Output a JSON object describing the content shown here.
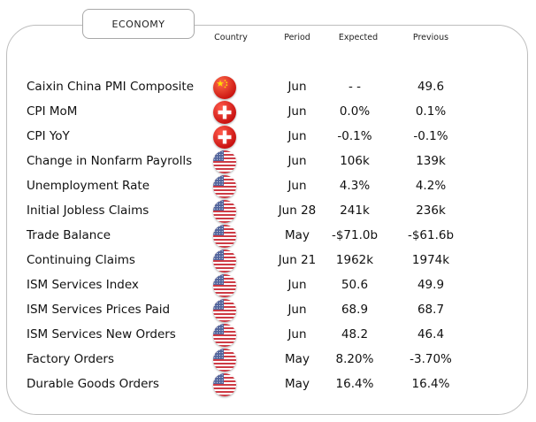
{
  "tab_label": "ECONOMY",
  "columns": {
    "country": "Country",
    "period": "Period",
    "expected": "Expected",
    "previous": "Previous"
  },
  "rows": [
    {
      "name": "Caixin China PMI Composite",
      "country_icon": "china-flag-icon",
      "period": "Jun",
      "expected": "- -",
      "previous": "49.6"
    },
    {
      "name": "CPI MoM",
      "country_icon": "switzerland-flag-icon",
      "period": "Jun",
      "expected": "0.0%",
      "previous": "0.1%"
    },
    {
      "name": "CPI YoY",
      "country_icon": "switzerland-flag-icon",
      "period": "Jun",
      "expected": "-0.1%",
      "previous": "-0.1%"
    },
    {
      "name": "Change in Nonfarm Payrolls",
      "country_icon": "usa-flag-icon",
      "period": "Jun",
      "expected": "106k",
      "previous": "139k"
    },
    {
      "name": "Unemployment Rate",
      "country_icon": "usa-flag-icon",
      "period": "Jun",
      "expected": "4.3%",
      "previous": "4.2%"
    },
    {
      "name": "Initial Jobless Claims",
      "country_icon": "usa-flag-icon",
      "period": "Jun 28",
      "expected": "241k",
      "previous": "236k"
    },
    {
      "name": "Trade Balance",
      "country_icon": "usa-flag-icon",
      "period": "May",
      "expected": "-$71.0b",
      "previous": "-$61.6b"
    },
    {
      "name": "Continuing Claims",
      "country_icon": "usa-flag-icon",
      "period": "Jun 21",
      "expected": "1962k",
      "previous": "1974k"
    },
    {
      "name": "ISM Services Index",
      "country_icon": "usa-flag-icon",
      "period": "Jun",
      "expected": "50.6",
      "previous": "49.9"
    },
    {
      "name": "ISM Services Prices Paid",
      "country_icon": "usa-flag-icon",
      "period": "Jun",
      "expected": "68.9",
      "previous": "68.7"
    },
    {
      "name": "ISM Services New Orders",
      "country_icon": "usa-flag-icon",
      "period": "Jun",
      "expected": "48.2",
      "previous": "46.4"
    },
    {
      "name": "Factory Orders",
      "country_icon": "usa-flag-icon",
      "period": "May",
      "expected": "8.20%",
      "previous": "-3.70%"
    },
    {
      "name": "Durable Goods Orders",
      "country_icon": "usa-flag-icon",
      "period": "May",
      "expected": "16.4%",
      "previous": "16.4%"
    }
  ]
}
